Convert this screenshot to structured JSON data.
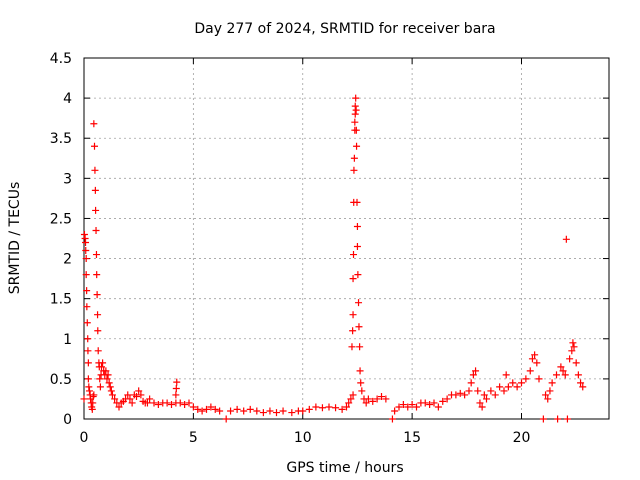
{
  "chart_data": {
    "type": "scatter",
    "title": "Day 277 of 2024, SRMTID for receiver bara",
    "xlabel": "GPS time / hours",
    "ylabel": "SRMTID / TECUs",
    "xlim": [
      0,
      24
    ],
    "ylim": [
      0,
      4.5
    ],
    "xticks": [
      0,
      5,
      10,
      15,
      20
    ],
    "xtick_labels": [
      "0",
      "5",
      "10",
      "15",
      "20"
    ],
    "yticks": [
      0,
      0.5,
      1,
      1.5,
      2,
      2.5,
      3,
      3.5,
      4,
      4.5
    ],
    "ytick_labels": [
      "0",
      "0.5",
      "1",
      "1.5",
      "2",
      "2.5",
      "3",
      "3.5",
      "4",
      "4.5"
    ],
    "grid": true,
    "marker": "+",
    "series": [
      {
        "name": "bara",
        "color": "#ff0000",
        "points": [
          [
            0.0,
            0.25
          ],
          [
            0.02,
            2.3
          ],
          [
            0.05,
            2.25
          ],
          [
            0.07,
            2.2
          ],
          [
            0.08,
            2.1
          ],
          [
            0.1,
            2.0
          ],
          [
            0.1,
            1.8
          ],
          [
            0.12,
            1.6
          ],
          [
            0.13,
            1.4
          ],
          [
            0.15,
            1.2
          ],
          [
            0.17,
            1.0
          ],
          [
            0.18,
            0.85
          ],
          [
            0.2,
            0.7
          ],
          [
            0.2,
            0.5
          ],
          [
            0.22,
            0.4
          ],
          [
            0.25,
            0.35
          ],
          [
            0.28,
            0.3
          ],
          [
            0.3,
            0.25
          ],
          [
            0.33,
            0.2
          ],
          [
            0.35,
            0.15
          ],
          [
            0.38,
            0.12
          ],
          [
            0.4,
            0.2
          ],
          [
            0.42,
            0.28
          ],
          [
            0.45,
            0.3
          ],
          [
            0.45,
            3.68
          ],
          [
            0.48,
            3.4
          ],
          [
            0.5,
            3.1
          ],
          [
            0.52,
            2.85
          ],
          [
            0.53,
            2.6
          ],
          [
            0.55,
            2.35
          ],
          [
            0.57,
            2.05
          ],
          [
            0.58,
            1.8
          ],
          [
            0.6,
            1.55
          ],
          [
            0.62,
            1.3
          ],
          [
            0.63,
            1.1
          ],
          [
            0.65,
            0.85
          ],
          [
            0.68,
            0.7
          ],
          [
            0.7,
            0.65
          ],
          [
            0.72,
            0.5
          ],
          [
            0.75,
            0.4
          ],
          [
            0.78,
            0.55
          ],
          [
            0.8,
            0.65
          ],
          [
            0.85,
            0.7
          ],
          [
            0.9,
            0.6
          ],
          [
            0.95,
            0.55
          ],
          [
            1.0,
            0.6
          ],
          [
            1.05,
            0.5
          ],
          [
            1.1,
            0.55
          ],
          [
            1.15,
            0.45
          ],
          [
            1.2,
            0.4
          ],
          [
            1.25,
            0.35
          ],
          [
            1.3,
            0.3
          ],
          [
            1.4,
            0.25
          ],
          [
            1.5,
            0.2
          ],
          [
            1.6,
            0.15
          ],
          [
            1.7,
            0.2
          ],
          [
            1.8,
            0.22
          ],
          [
            1.9,
            0.25
          ],
          [
            2.0,
            0.3
          ],
          [
            2.1,
            0.25
          ],
          [
            2.2,
            0.2
          ],
          [
            2.3,
            0.3
          ],
          [
            2.4,
            0.28
          ],
          [
            2.5,
            0.35
          ],
          [
            2.6,
            0.3
          ],
          [
            2.7,
            0.22
          ],
          [
            2.8,
            0.2
          ],
          [
            2.9,
            0.2
          ],
          [
            3.0,
            0.25
          ],
          [
            3.2,
            0.2
          ],
          [
            3.4,
            0.18
          ],
          [
            3.6,
            0.2
          ],
          [
            3.8,
            0.2
          ],
          [
            4.0,
            0.18
          ],
          [
            4.2,
            0.2
          ],
          [
            4.2,
            0.3
          ],
          [
            4.22,
            0.38
          ],
          [
            4.24,
            0.46
          ],
          [
            4.4,
            0.2
          ],
          [
            4.6,
            0.18
          ],
          [
            4.8,
            0.2
          ],
          [
            5.0,
            0.15
          ],
          [
            5.2,
            0.12
          ],
          [
            5.4,
            0.1
          ],
          [
            5.6,
            0.12
          ],
          [
            5.8,
            0.15
          ],
          [
            6.0,
            0.12
          ],
          [
            6.2,
            0.1
          ],
          [
            6.5,
            0.0
          ],
          [
            6.7,
            0.1
          ],
          [
            7.0,
            0.12
          ],
          [
            7.3,
            0.1
          ],
          [
            7.6,
            0.12
          ],
          [
            7.9,
            0.1
          ],
          [
            8.2,
            0.08
          ],
          [
            8.5,
            0.1
          ],
          [
            8.8,
            0.08
          ],
          [
            9.1,
            0.1
          ],
          [
            9.5,
            0.08
          ],
          [
            9.8,
            0.1
          ],
          [
            10.0,
            0.1
          ],
          [
            10.3,
            0.12
          ],
          [
            10.6,
            0.15
          ],
          [
            10.9,
            0.14
          ],
          [
            11.2,
            0.15
          ],
          [
            11.5,
            0.14
          ],
          [
            11.8,
            0.12
          ],
          [
            12.0,
            0.15
          ],
          [
            12.1,
            0.2
          ],
          [
            12.2,
            0.25
          ],
          [
            12.3,
            0.3
          ],
          [
            12.25,
            0.9
          ],
          [
            12.28,
            1.1
          ],
          [
            12.3,
            1.3
          ],
          [
            12.3,
            1.75
          ],
          [
            12.32,
            2.05
          ],
          [
            12.33,
            2.7
          ],
          [
            12.34,
            3.1
          ],
          [
            12.36,
            3.25
          ],
          [
            12.38,
            3.6
          ],
          [
            12.38,
            3.7
          ],
          [
            12.4,
            3.8
          ],
          [
            12.4,
            3.9
          ],
          [
            12.42,
            4.0
          ],
          [
            12.44,
            3.85
          ],
          [
            12.45,
            3.6
          ],
          [
            12.46,
            3.4
          ],
          [
            12.48,
            2.7
          ],
          [
            12.5,
            2.4
          ],
          [
            12.5,
            2.15
          ],
          [
            12.52,
            1.8
          ],
          [
            12.55,
            1.45
          ],
          [
            12.57,
            1.15
          ],
          [
            12.6,
            0.9
          ],
          [
            12.62,
            0.6
          ],
          [
            12.65,
            0.45
          ],
          [
            12.7,
            0.35
          ],
          [
            12.8,
            0.25
          ],
          [
            12.9,
            0.2
          ],
          [
            13.0,
            0.25
          ],
          [
            13.2,
            0.22
          ],
          [
            13.4,
            0.25
          ],
          [
            13.6,
            0.28
          ],
          [
            13.8,
            0.25
          ],
          [
            14.1,
            0.0
          ],
          [
            14.2,
            0.1
          ],
          [
            14.4,
            0.15
          ],
          [
            14.6,
            0.18
          ],
          [
            14.8,
            0.15
          ],
          [
            15.0,
            0.18
          ],
          [
            15.2,
            0.15
          ],
          [
            15.4,
            0.2
          ],
          [
            15.6,
            0.2
          ],
          [
            15.8,
            0.18
          ],
          [
            16.0,
            0.2
          ],
          [
            16.2,
            0.15
          ],
          [
            16.4,
            0.22
          ],
          [
            16.6,
            0.25
          ],
          [
            16.8,
            0.3
          ],
          [
            17.0,
            0.3
          ],
          [
            17.2,
            0.32
          ],
          [
            17.4,
            0.3
          ],
          [
            17.6,
            0.35
          ],
          [
            17.7,
            0.45
          ],
          [
            17.8,
            0.55
          ],
          [
            17.9,
            0.6
          ],
          [
            18.0,
            0.35
          ],
          [
            18.1,
            0.2
          ],
          [
            18.2,
            0.15
          ],
          [
            18.3,
            0.3
          ],
          [
            18.4,
            0.25
          ],
          [
            18.6,
            0.35
          ],
          [
            18.8,
            0.3
          ],
          [
            19.0,
            0.4
          ],
          [
            19.2,
            0.35
          ],
          [
            19.3,
            0.55
          ],
          [
            19.4,
            0.4
          ],
          [
            19.6,
            0.45
          ],
          [
            19.8,
            0.4
          ],
          [
            20.0,
            0.45
          ],
          [
            20.2,
            0.5
          ],
          [
            20.4,
            0.6
          ],
          [
            20.5,
            0.75
          ],
          [
            20.6,
            0.8
          ],
          [
            20.7,
            0.7
          ],
          [
            20.8,
            0.5
          ],
          [
            21.0,
            0.0
          ],
          [
            21.1,
            0.3
          ],
          [
            21.2,
            0.25
          ],
          [
            21.3,
            0.35
          ],
          [
            21.4,
            0.45
          ],
          [
            21.6,
            0.55
          ],
          [
            21.65,
            0.0
          ],
          [
            21.8,
            0.65
          ],
          [
            21.9,
            0.6
          ],
          [
            22.0,
            0.55
          ],
          [
            22.05,
            2.24
          ],
          [
            22.1,
            0.0
          ],
          [
            22.2,
            0.75
          ],
          [
            22.3,
            0.85
          ],
          [
            22.35,
            0.95
          ],
          [
            22.4,
            0.9
          ],
          [
            22.5,
            0.7
          ],
          [
            22.6,
            0.55
          ],
          [
            22.7,
            0.45
          ],
          [
            22.8,
            0.4
          ]
        ]
      }
    ]
  }
}
